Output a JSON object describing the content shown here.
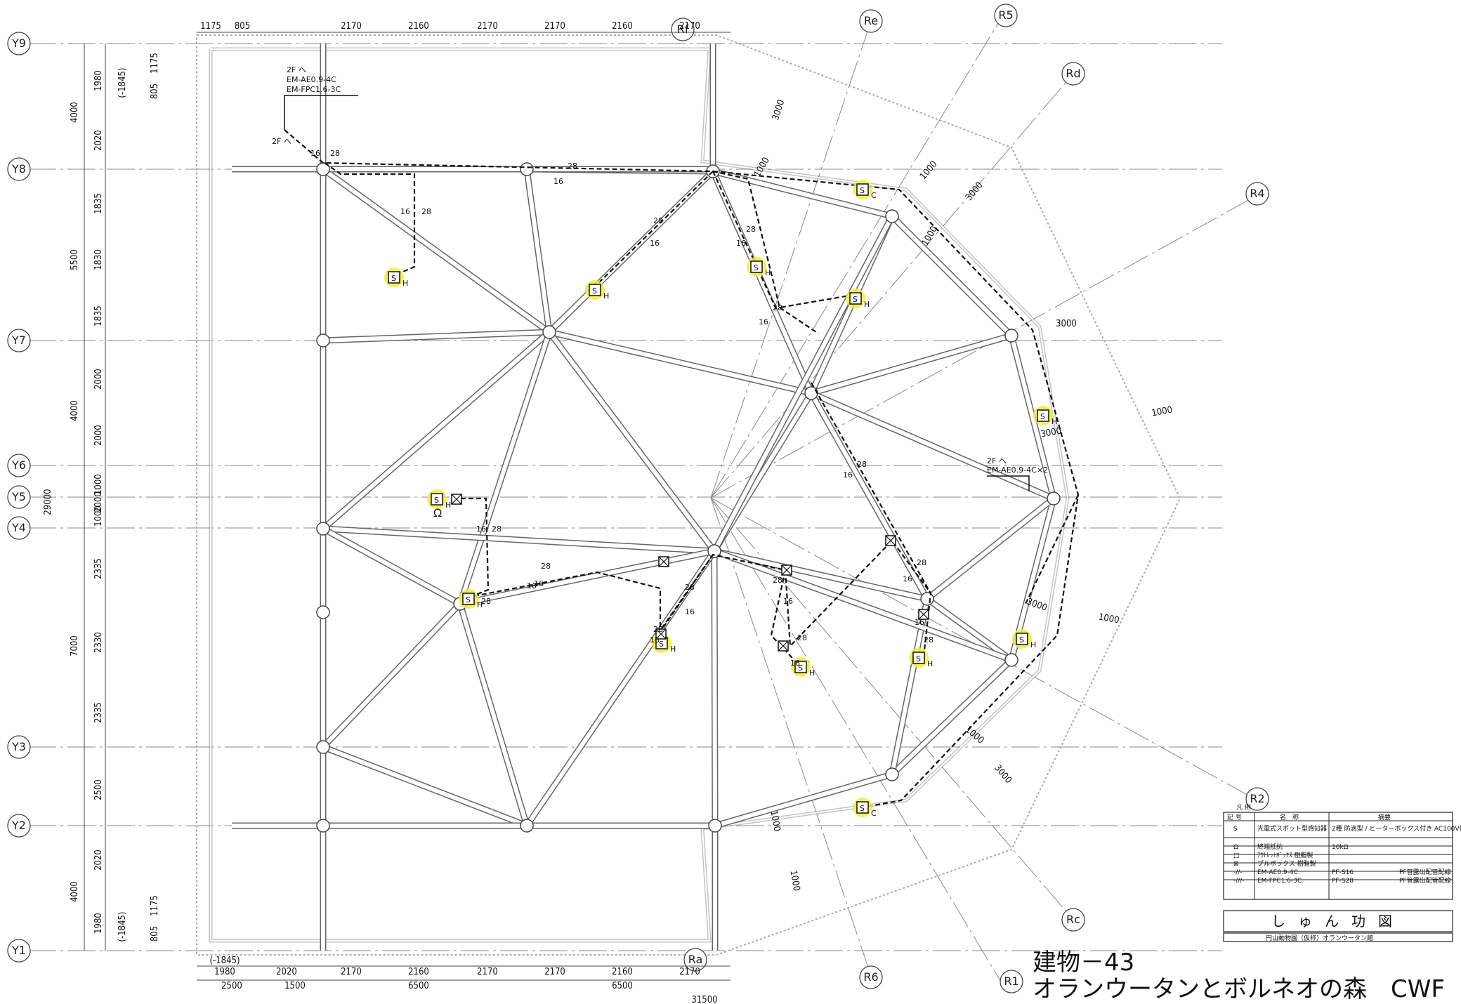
{
  "grid_y": [
    "Y9",
    "Y8",
    "Y7",
    "Y6",
    "Y5",
    "Y4",
    "Y3",
    "Y2",
    "Y1"
  ],
  "grid_r": [
    "Re",
    "R5",
    "Rf",
    "Rd",
    "R4",
    "R2",
    "Rc",
    "Ra",
    "R6",
    "R1"
  ],
  "top_dims": [
    "1175",
    "805",
    "2170",
    "2160",
    "2170",
    "2170",
    "2160",
    "2170"
  ],
  "bottom_dims_row1": [
    "1980",
    "2020",
    "2170",
    "2160",
    "2170",
    "2170",
    "2160",
    "2170"
  ],
  "bottom_dims_row2": [
    "2500",
    "1500",
    "6500",
    "6500"
  ],
  "bottom_total": "31500",
  "left_dims_inner": [
    "1980",
    "2020",
    "1835",
    "1830",
    "1835",
    "2000",
    "2000",
    "1000",
    "2000",
    "1000",
    "2335",
    "2330",
    "2335",
    "2500",
    "2020",
    "1980"
  ],
  "left_dims_outer": [
    "4000",
    "5500",
    "4000",
    "7000",
    "4000"
  ],
  "left_total": "29000",
  "level_marks": [
    "(-1845)",
    "1175",
    "805",
    "(-1845)",
    "1175",
    "805",
    "(-1845)"
  ],
  "radial_dims": [
    "3000",
    "1000",
    "3000",
    "1000",
    "1000",
    "3000",
    "1000",
    "3000",
    "1000",
    "3000",
    "1000",
    "1000",
    "1000",
    "3000"
  ],
  "notes": {
    "upstairs_1": "2F へ",
    "cable_1": "EM-AE0.9-4C",
    "cable_2": "EM-FPC1.6-3C",
    "upstairs_2": "2F へ",
    "cable_3": "EM-AE0.9-4C×2",
    "up_small": "2F へ"
  },
  "pipe_labels": [
    "28",
    "16"
  ],
  "detector_suffix": {
    "h": "H",
    "c": "C"
  },
  "legend": {
    "header_mark": "凡 例",
    "col_symbol": "記 号",
    "col_name": "名　称",
    "col_note": "摘要",
    "rows": [
      {
        "symbol": "S",
        "name": "光電式スポット型感知器",
        "note": "2種 防滴型 / ヒーターボックス付き AC100V供給",
        "note2": ""
      },
      {
        "symbol": "Ω",
        "name": "終端抵抗",
        "note": "10kΩ",
        "note2": ""
      },
      {
        "symbol": "□",
        "name": "ｱｳﾄﾚｯﾄﾎﾞｯｸｽ 樹脂製",
        "note": "",
        "note2": ""
      },
      {
        "symbol": "⊠",
        "name": "プルボックス 樹脂製",
        "note": "",
        "note2": ""
      },
      {
        "symbol": "-//-",
        "name": "EM-AE0.9-4C",
        "note": "PF-S16",
        "note2": "PF管露出配管配線"
      },
      {
        "symbol": "-///-",
        "name": "EM-FPC1.6-3C",
        "note": "PF-S28",
        "note2": "PF管露出配管配線"
      }
    ],
    "stamp": "しゅん功図",
    "project": "円山動物園（仮称）オランウータン館"
  },
  "title": {
    "line1": "建物－43",
    "line2": "オランウータンとボルネオの森　CWF"
  },
  "colors": {
    "line": "#222222",
    "highlight": "#f2ee3a",
    "frame": "#555555",
    "grid": "#888888"
  }
}
